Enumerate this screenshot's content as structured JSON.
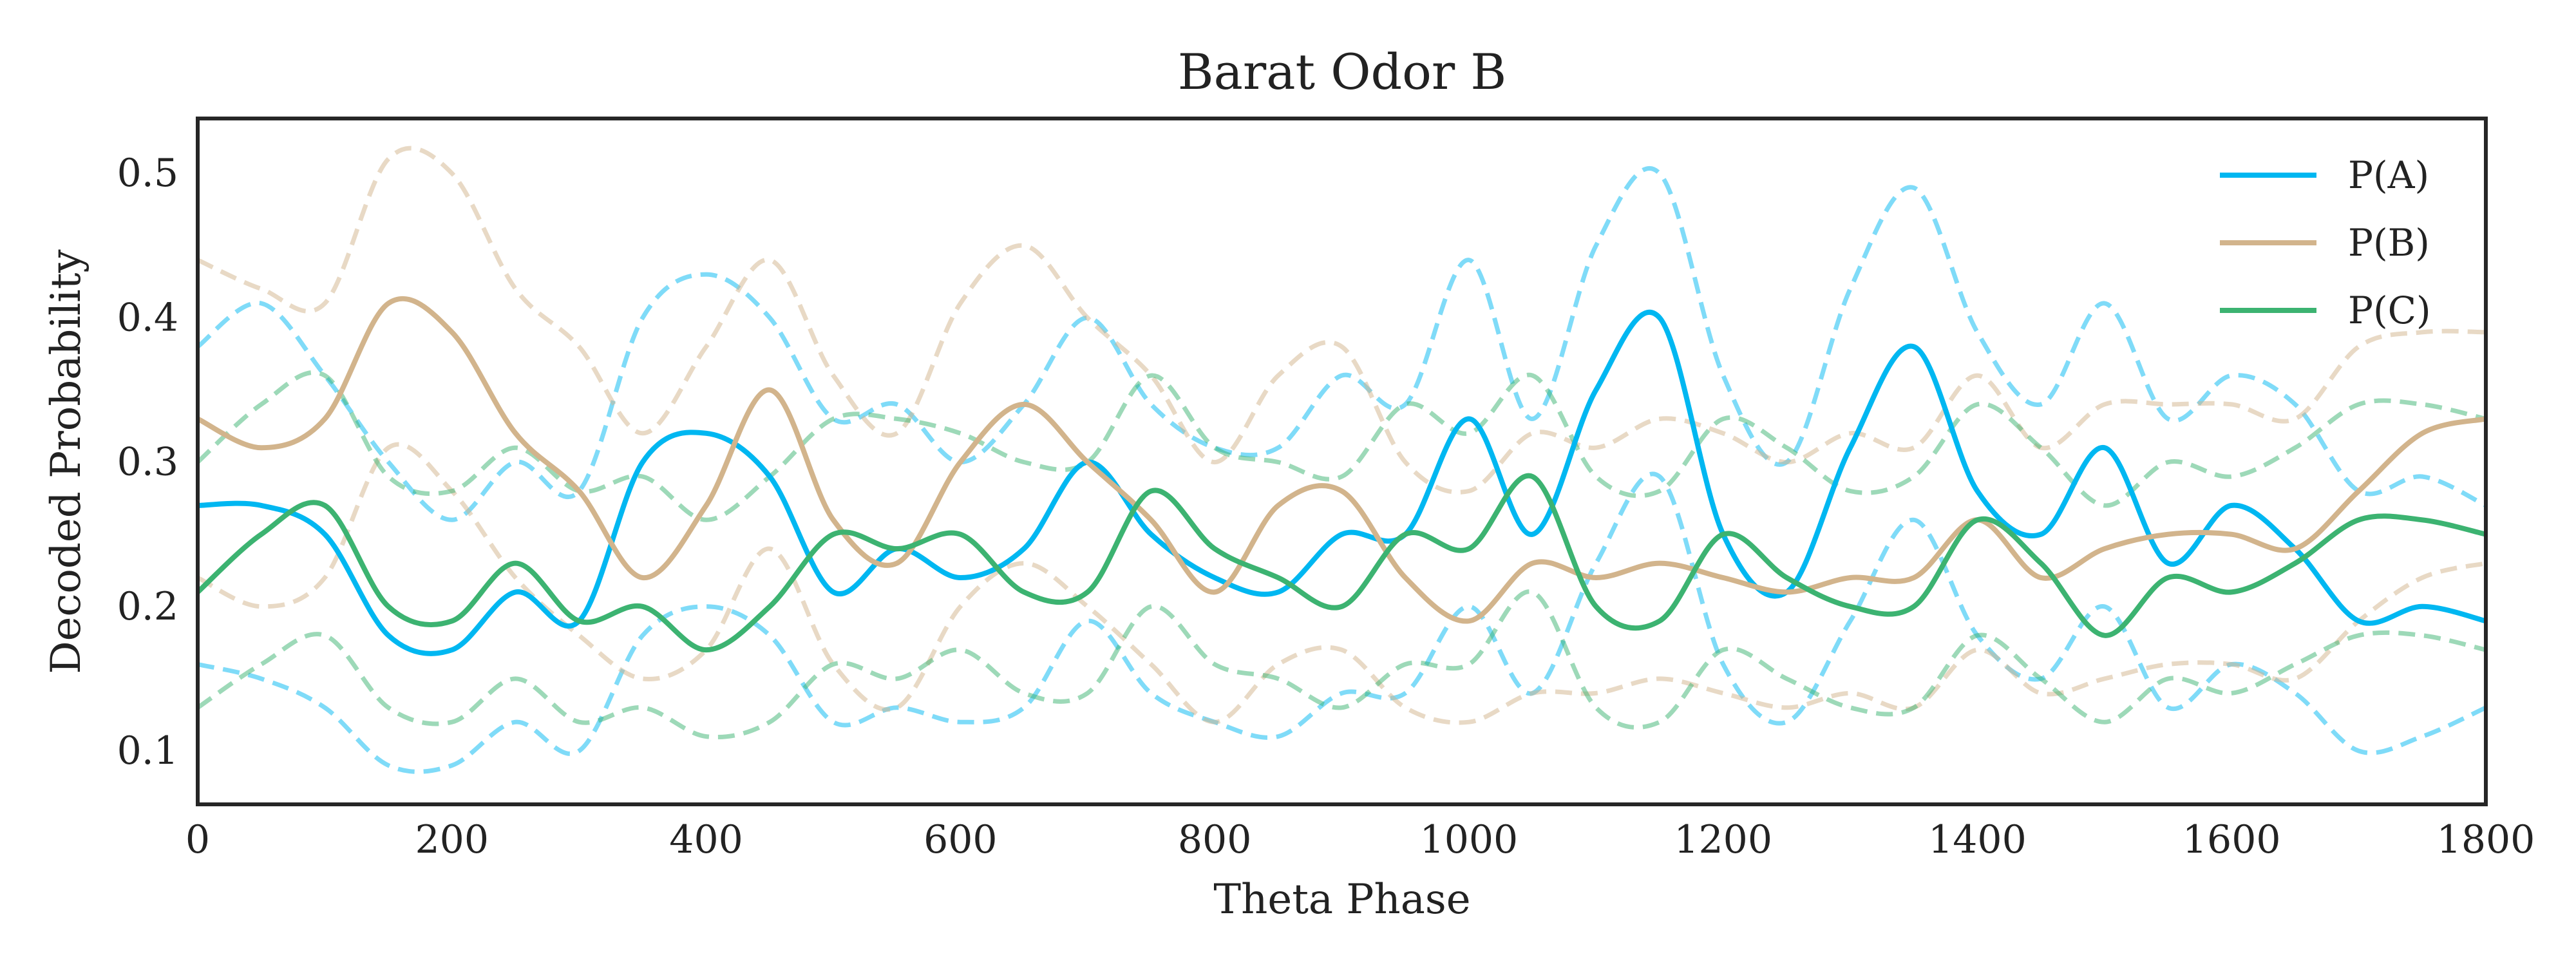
{
  "chart_data": {
    "type": "line",
    "title": "Barat Odor B",
    "xlabel": "Theta Phase",
    "ylabel": "Decoded Probability",
    "xlim": [
      0,
      1800
    ],
    "ylim": [
      0.063,
      0.538
    ],
    "xticks": [
      0,
      200,
      400,
      600,
      800,
      1000,
      1200,
      1400,
      1600,
      1800
    ],
    "xtick_labels": [
      "0",
      "200",
      "400",
      "600",
      "800",
      "1000",
      "1200",
      "1400",
      "1600",
      "1800"
    ],
    "yticks": [
      0.1,
      0.2,
      0.3,
      0.4,
      0.5
    ],
    "ytick_labels": [
      "0.1",
      "0.2",
      "0.3",
      "0.4",
      "0.5"
    ],
    "grid": false,
    "legend_position": "top-right",
    "x": [
      0,
      50,
      100,
      150,
      200,
      250,
      300,
      350,
      400,
      450,
      500,
      550,
      600,
      650,
      700,
      750,
      800,
      850,
      900,
      950,
      1000,
      1050,
      1100,
      1150,
      1200,
      1250,
      1300,
      1350,
      1400,
      1450,
      1500,
      1550,
      1600,
      1650,
      1700,
      1750,
      1800
    ],
    "series": [
      {
        "name": "P(A)",
        "color": "#00b7f1",
        "values": [
          0.27,
          0.27,
          0.25,
          0.18,
          0.17,
          0.21,
          0.19,
          0.3,
          0.32,
          0.29,
          0.21,
          0.24,
          0.22,
          0.24,
          0.3,
          0.25,
          0.22,
          0.21,
          0.25,
          0.25,
          0.33,
          0.25,
          0.35,
          0.4,
          0.25,
          0.21,
          0.31,
          0.38,
          0.28,
          0.25,
          0.31,
          0.23,
          0.27,
          0.24,
          0.19,
          0.2,
          0.19
        ],
        "upper": [
          0.38,
          0.41,
          0.36,
          0.3,
          0.26,
          0.3,
          0.28,
          0.4,
          0.43,
          0.4,
          0.33,
          0.34,
          0.3,
          0.34,
          0.4,
          0.34,
          0.31,
          0.31,
          0.36,
          0.34,
          0.44,
          0.33,
          0.45,
          0.5,
          0.36,
          0.3,
          0.42,
          0.49,
          0.39,
          0.34,
          0.41,
          0.33,
          0.36,
          0.34,
          0.28,
          0.29,
          0.27
        ],
        "lower": [
          0.16,
          0.15,
          0.13,
          0.09,
          0.09,
          0.12,
          0.1,
          0.18,
          0.2,
          0.18,
          0.12,
          0.13,
          0.12,
          0.13,
          0.19,
          0.14,
          0.12,
          0.11,
          0.14,
          0.14,
          0.2,
          0.14,
          0.23,
          0.29,
          0.16,
          0.12,
          0.19,
          0.26,
          0.18,
          0.15,
          0.2,
          0.13,
          0.16,
          0.14,
          0.1,
          0.11,
          0.13
        ]
      },
      {
        "name": "P(B)",
        "color": "#d2b48c",
        "values": [
          0.33,
          0.31,
          0.33,
          0.41,
          0.39,
          0.32,
          0.28,
          0.22,
          0.27,
          0.35,
          0.26,
          0.23,
          0.3,
          0.34,
          0.3,
          0.26,
          0.21,
          0.27,
          0.28,
          0.22,
          0.19,
          0.23,
          0.22,
          0.23,
          0.22,
          0.21,
          0.22,
          0.22,
          0.26,
          0.22,
          0.24,
          0.25,
          0.25,
          0.24,
          0.28,
          0.32,
          0.33
        ],
        "upper": [
          0.44,
          0.42,
          0.41,
          0.51,
          0.5,
          0.42,
          0.38,
          0.32,
          0.38,
          0.44,
          0.36,
          0.32,
          0.41,
          0.45,
          0.4,
          0.36,
          0.3,
          0.36,
          0.38,
          0.3,
          0.28,
          0.32,
          0.31,
          0.33,
          0.32,
          0.3,
          0.32,
          0.31,
          0.36,
          0.31,
          0.34,
          0.34,
          0.34,
          0.33,
          0.38,
          0.39,
          0.39
        ],
        "lower": [
          0.22,
          0.2,
          0.22,
          0.31,
          0.28,
          0.22,
          0.18,
          0.15,
          0.17,
          0.24,
          0.16,
          0.13,
          0.2,
          0.23,
          0.2,
          0.16,
          0.12,
          0.16,
          0.17,
          0.13,
          0.12,
          0.14,
          0.14,
          0.15,
          0.14,
          0.13,
          0.14,
          0.13,
          0.17,
          0.14,
          0.15,
          0.16,
          0.16,
          0.15,
          0.19,
          0.22,
          0.23
        ]
      },
      {
        "name": "P(C)",
        "color": "#3cb371",
        "values": [
          0.21,
          0.25,
          0.27,
          0.2,
          0.19,
          0.23,
          0.19,
          0.2,
          0.17,
          0.2,
          0.25,
          0.24,
          0.25,
          0.21,
          0.21,
          0.28,
          0.24,
          0.22,
          0.2,
          0.25,
          0.24,
          0.29,
          0.2,
          0.19,
          0.25,
          0.22,
          0.2,
          0.2,
          0.26,
          0.23,
          0.18,
          0.22,
          0.21,
          0.23,
          0.26,
          0.26,
          0.25
        ],
        "upper": [
          0.3,
          0.34,
          0.36,
          0.29,
          0.28,
          0.31,
          0.28,
          0.29,
          0.26,
          0.29,
          0.33,
          0.33,
          0.32,
          0.3,
          0.3,
          0.36,
          0.31,
          0.3,
          0.29,
          0.34,
          0.32,
          0.36,
          0.29,
          0.28,
          0.33,
          0.31,
          0.28,
          0.29,
          0.34,
          0.31,
          0.27,
          0.3,
          0.29,
          0.31,
          0.34,
          0.34,
          0.33
        ],
        "lower": [
          0.13,
          0.16,
          0.18,
          0.13,
          0.12,
          0.15,
          0.12,
          0.13,
          0.11,
          0.12,
          0.16,
          0.15,
          0.17,
          0.14,
          0.14,
          0.2,
          0.16,
          0.15,
          0.13,
          0.16,
          0.16,
          0.21,
          0.13,
          0.12,
          0.17,
          0.15,
          0.13,
          0.13,
          0.18,
          0.15,
          0.12,
          0.15,
          0.14,
          0.16,
          0.18,
          0.18,
          0.17
        ]
      }
    ]
  }
}
